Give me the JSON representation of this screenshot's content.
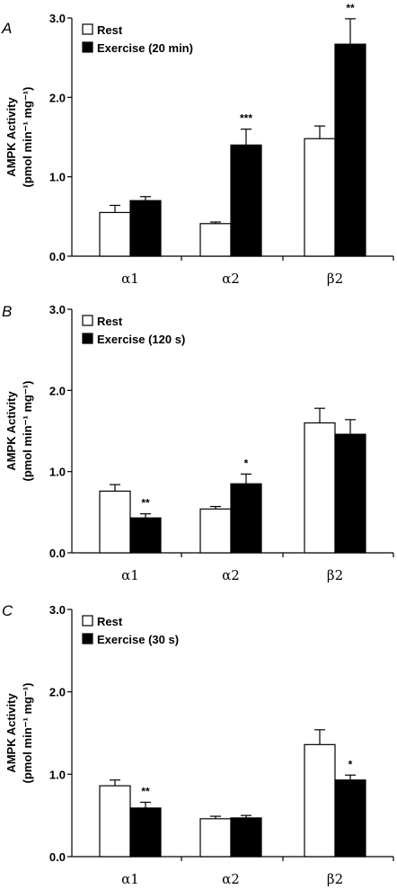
{
  "chart_data": [
    {
      "type": "bar",
      "panel": "A",
      "categories": [
        "α1",
        "α2",
        "β2"
      ],
      "ylabel_line1": "AMPK Activity",
      "ylabel_line2": "(pmol min⁻¹ mg⁻¹)",
      "ylim": [
        0,
        3
      ],
      "yticks": [
        "0.0",
        "1.0",
        "2.0",
        "3.0"
      ],
      "legend_placement": "top-left",
      "series": [
        {
          "name": "Rest",
          "color": "#ffffff",
          "values": [
            0.55,
            0.41,
            1.48
          ],
          "errors": [
            0.09,
            0.02,
            0.16
          ]
        },
        {
          "name": "Exercise (20 min)",
          "color": "#000000",
          "values": [
            0.7,
            1.4,
            2.67
          ],
          "errors": [
            0.05,
            0.2,
            0.32
          ]
        }
      ],
      "significance": [
        {
          "series": 1,
          "category": 1,
          "mark": "***"
        },
        {
          "series": 1,
          "category": 2,
          "mark": "**"
        }
      ]
    },
    {
      "type": "bar",
      "panel": "B",
      "categories": [
        "α1",
        "α2",
        "β2"
      ],
      "ylabel_line1": "AMPK Activity",
      "ylabel_line2": "(pmol min⁻¹ mg⁻¹)",
      "ylim": [
        0,
        3
      ],
      "yticks": [
        "0.0",
        "1.0",
        "2.0",
        "3.0"
      ],
      "legend_placement": "top-left",
      "series": [
        {
          "name": "Rest",
          "color": "#ffffff",
          "values": [
            0.76,
            0.54,
            1.6
          ],
          "errors": [
            0.08,
            0.03,
            0.18
          ]
        },
        {
          "name": "Exercise (120 s)",
          "color": "#000000",
          "values": [
            0.43,
            0.85,
            1.46
          ],
          "errors": [
            0.05,
            0.12,
            0.18
          ]
        }
      ],
      "significance": [
        {
          "series": 1,
          "category": 0,
          "mark": "**"
        },
        {
          "series": 1,
          "category": 1,
          "mark": "*"
        }
      ]
    },
    {
      "type": "bar",
      "panel": "C",
      "categories": [
        "α1",
        "α2",
        "β2"
      ],
      "ylabel_line1": "AMPK Activity",
      "ylabel_line2": "(pmol min⁻¹ mg⁻¹)",
      "ylim": [
        0,
        3
      ],
      "yticks": [
        "0.0",
        "1.0",
        "2.0",
        "3.0"
      ],
      "legend_placement": "top-left",
      "series": [
        {
          "name": "Rest",
          "color": "#ffffff",
          "values": [
            0.86,
            0.46,
            1.36
          ],
          "errors": [
            0.07,
            0.03,
            0.18
          ]
        },
        {
          "name": "Exercise (30 s)",
          "color": "#000000",
          "values": [
            0.59,
            0.47,
            0.93
          ],
          "errors": [
            0.07,
            0.03,
            0.06
          ]
        }
      ],
      "significance": [
        {
          "series": 1,
          "category": 0,
          "mark": "**"
        },
        {
          "series": 1,
          "category": 2,
          "mark": "*"
        }
      ]
    }
  ]
}
